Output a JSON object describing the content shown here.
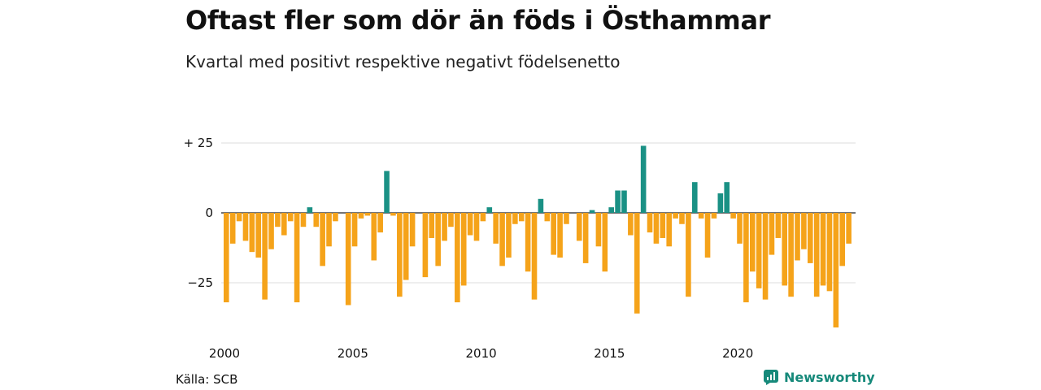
{
  "header": {
    "title": "Oftast fler som dör än föds i Östhammar",
    "subtitle": "Kvartal med positivt respektive negativt födelsenetto"
  },
  "footer": {
    "source": "Källa: SCB",
    "brand": "Newsworthy",
    "brand_icon": "newsworthy-logo-icon"
  },
  "colors": {
    "positive": "#1a9185",
    "negative": "#f5a31a",
    "grid": "#dddddd"
  },
  "chart_data": {
    "type": "bar",
    "title": "Oftast fler som dör än föds i Östhammar",
    "subtitle": "Kvartal med positivt respektive negativt födelsenetto",
    "x_start": "2000-Q1",
    "x_ticks": [
      "2000",
      "2005",
      "2010",
      "2015",
      "2020"
    ],
    "y_ticks": [
      {
        "value": 25,
        "label": "+ 25"
      },
      {
        "value": 0,
        "label": "0"
      },
      {
        "value": -25,
        "label": "−25"
      }
    ],
    "ylim": [
      -42,
      28
    ],
    "grid": true,
    "legend": "none",
    "values": [
      -32,
      -11,
      -3,
      -10,
      -14,
      -16,
      -31,
      -13,
      -5,
      -8,
      -3,
      -32,
      -5,
      2,
      -5,
      -19,
      -12,
      -3,
      0,
      -33,
      -12,
      -2,
      -1,
      -17,
      -7,
      15,
      -1,
      -30,
      -24,
      -12,
      0,
      -23,
      -9,
      -19,
      -10,
      -5,
      -32,
      -26,
      -8,
      -10,
      -3,
      2,
      -11,
      -19,
      -16,
      -4,
      -3,
      -21,
      -31,
      5,
      -3,
      -15,
      -16,
      -4,
      0,
      -10,
      -18,
      1,
      -12,
      -21,
      2,
      8,
      8,
      -8,
      -36,
      24,
      -7,
      -11,
      -9,
      -12,
      -2,
      -4,
      -30,
      11,
      -2,
      -16,
      -2,
      7,
      11,
      -2,
      -11,
      -32,
      -21,
      -27,
      -31,
      -15,
      -9,
      -26,
      -30,
      -17,
      -13,
      -18,
      -30,
      -26,
      -28,
      -41,
      -19,
      -11
    ]
  }
}
